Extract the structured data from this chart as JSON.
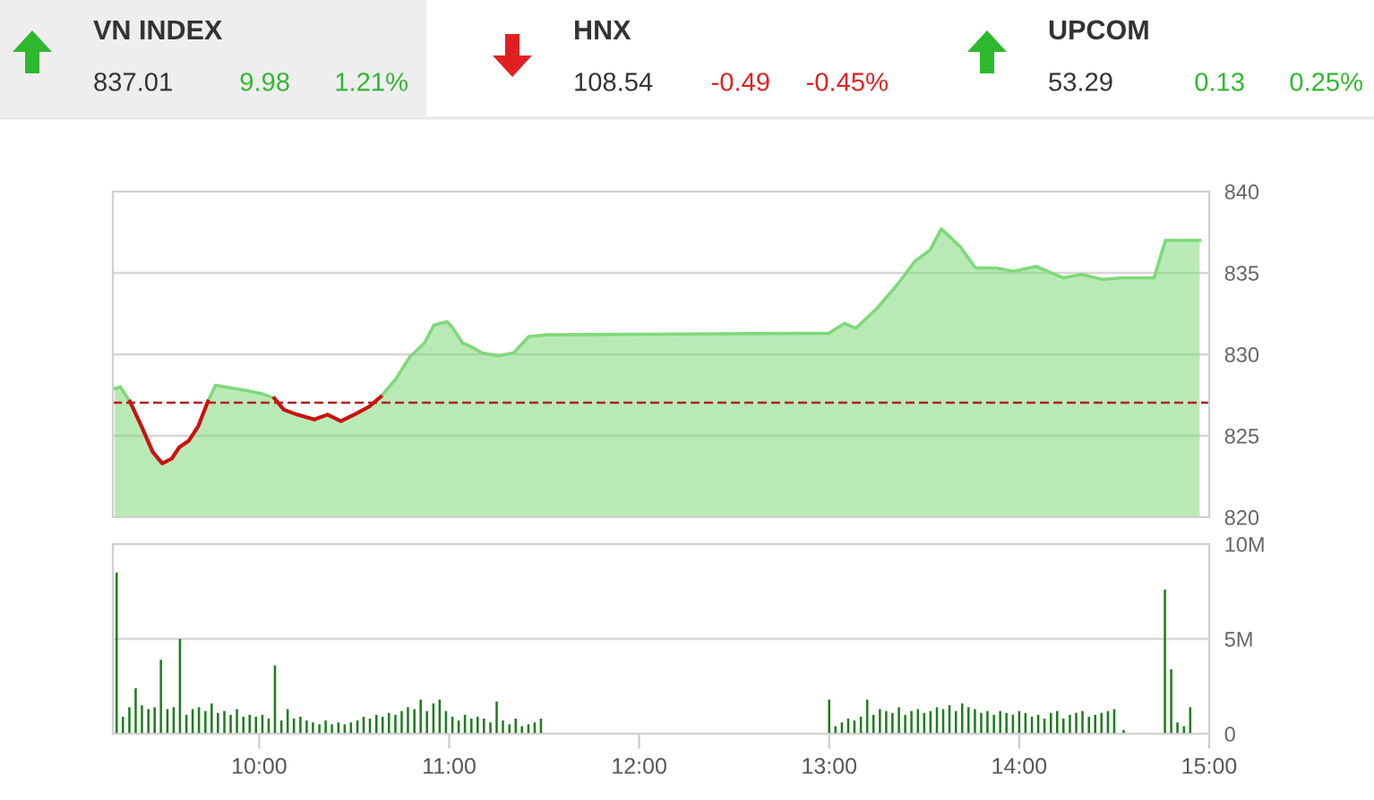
{
  "chart_data": [
    {
      "type": "other",
      "annotations": [
        "VN INDEX",
        "837.01",
        "9.98",
        "1.21%",
        "HNX",
        "108.54",
        "-0.49",
        "-0.45%",
        "UPCOM",
        "53.29",
        "0.13",
        "0.25%"
      ],
      "colors": [
        "#2eb82e",
        "#e02020",
        "#2eb82e"
      ]
    },
    {
      "type": "area",
      "x": [
        9.24,
        9.27,
        9.32,
        9.38,
        9.44,
        9.49,
        9.54,
        9.58,
        9.63,
        9.68,
        9.73,
        9.77,
        9.82,
        9.92,
        10.01,
        10.08,
        10.13,
        10.2,
        10.29,
        10.36,
        10.43,
        10.5,
        10.58,
        10.64,
        10.72,
        10.79,
        10.87,
        10.92,
        10.99,
        11.02,
        11.07,
        11.11,
        11.17,
        11.26,
        11.34,
        11.42,
        11.52,
        13.0,
        13.08,
        13.14,
        13.25,
        13.36,
        13.45,
        13.53,
        13.59,
        13.69,
        13.77,
        13.88,
        13.97,
        14.09,
        14.23,
        14.33,
        14.44,
        14.54,
        14.71,
        14.77,
        14.95
      ],
      "series": [
        {
          "type": "area",
          "color": "#7fd97a",
          "values": [
            827.9,
            828.0,
            827.1,
            825.6,
            824.0,
            823.3,
            823.6,
            824.3,
            824.7,
            825.6,
            827.1,
            828.1,
            828.0,
            827.8,
            827.6,
            827.3,
            826.6,
            826.3,
            826.0,
            826.3,
            825.9,
            826.3,
            826.8,
            827.4,
            828.5,
            829.8,
            830.7,
            831.8,
            832.0,
            831.6,
            830.7,
            830.5,
            830.1,
            829.9,
            830.1,
            831.1,
            831.2,
            831.3,
            831.9,
            831.6,
            832.8,
            834.3,
            835.7,
            836.4,
            837.7,
            836.6,
            835.3,
            835.3,
            835.1,
            835.4,
            834.7,
            834.9,
            834.6,
            834.7,
            834.7,
            837.0,
            837.0
          ]
        },
        {
          "type": "line",
          "color": "#cc1111",
          "values": [
            null,
            null,
            827.1,
            825.6,
            824.0,
            823.3,
            823.6,
            824.3,
            824.7,
            825.6,
            827.1,
            null,
            null,
            null,
            null,
            827.3,
            826.6,
            826.3,
            826.0,
            826.3,
            825.9,
            826.3,
            826.8,
            827.4,
            null,
            null,
            null,
            null,
            null,
            null,
            null,
            null,
            null,
            null,
            null,
            null,
            null,
            null,
            null,
            null,
            null,
            null,
            null,
            null,
            null,
            null,
            null,
            null,
            null,
            null,
            null,
            null,
            null,
            null,
            null,
            null,
            null
          ]
        }
      ],
      "xlim": [
        9.23,
        15.0
      ],
      "ylim": [
        820,
        840
      ],
      "yticks": [
        820,
        825,
        830,
        835,
        840
      ],
      "grid": "y",
      "tick_labels": "y",
      "ref_lines": [
        {
          "axis": "y",
          "value": 827.03,
          "color": "#b02020",
          "line_style": "dashed"
        }
      ]
    },
    {
      "type": "bar",
      "color": "#1e7d1e",
      "x": [
        9.25,
        9.283,
        9.317,
        9.35,
        9.383,
        9.417,
        9.45,
        9.483,
        9.517,
        9.55,
        9.583,
        9.617,
        9.65,
        9.683,
        9.717,
        9.75,
        9.783,
        9.817,
        9.85,
        9.883,
        9.917,
        9.95,
        9.983,
        10.017,
        10.05,
        10.083,
        10.117,
        10.15,
        10.183,
        10.217,
        10.25,
        10.283,
        10.317,
        10.35,
        10.383,
        10.417,
        10.45,
        10.483,
        10.517,
        10.55,
        10.583,
        10.617,
        10.65,
        10.683,
        10.717,
        10.75,
        10.783,
        10.817,
        10.85,
        10.883,
        10.917,
        10.95,
        10.983,
        11.017,
        11.05,
        11.083,
        11.117,
        11.15,
        11.183,
        11.217,
        11.25,
        11.283,
        11.317,
        11.35,
        11.383,
        11.417,
        11.45,
        11.483,
        13.0,
        13.033,
        13.067,
        13.1,
        13.133,
        13.167,
        13.2,
        13.233,
        13.267,
        13.3,
        13.333,
        13.367,
        13.4,
        13.433,
        13.467,
        13.5,
        13.533,
        13.567,
        13.6,
        13.633,
        13.667,
        13.7,
        13.733,
        13.767,
        13.8,
        13.833,
        13.867,
        13.9,
        13.933,
        13.967,
        14.0,
        14.033,
        14.067,
        14.1,
        14.133,
        14.167,
        14.2,
        14.233,
        14.267,
        14.3,
        14.333,
        14.367,
        14.4,
        14.433,
        14.467,
        14.5,
        14.55,
        14.767,
        14.8,
        14.833,
        14.867,
        14.9
      ],
      "values": [
        8.5,
        0.9,
        1.4,
        2.4,
        1.5,
        1.3,
        1.4,
        3.9,
        1.3,
        1.4,
        5.0,
        1.0,
        1.3,
        1.4,
        1.2,
        1.6,
        1.1,
        1.2,
        1.0,
        1.3,
        0.9,
        1.0,
        0.9,
        1.0,
        0.8,
        3.6,
        0.7,
        1.3,
        0.8,
        0.9,
        0.7,
        0.6,
        0.5,
        0.7,
        0.5,
        0.6,
        0.5,
        0.6,
        0.7,
        0.9,
        0.8,
        1.0,
        0.9,
        1.1,
        1.0,
        1.2,
        1.4,
        1.3,
        1.8,
        1.2,
        1.6,
        1.8,
        1.2,
        0.9,
        0.7,
        1.0,
        0.8,
        0.9,
        0.8,
        0.6,
        1.7,
        0.7,
        0.5,
        0.8,
        0.4,
        0.5,
        0.6,
        0.8,
        1.8,
        0.4,
        0.6,
        0.8,
        0.7,
        0.9,
        1.8,
        1.0,
        1.3,
        1.2,
        1.1,
        1.4,
        1.0,
        1.2,
        1.3,
        1.1,
        1.2,
        1.4,
        1.3,
        1.5,
        1.2,
        1.6,
        1.4,
        1.3,
        1.1,
        1.2,
        1.0,
        1.2,
        1.1,
        1.0,
        1.2,
        1.1,
        0.9,
        1.0,
        0.8,
        1.1,
        1.2,
        0.8,
        1.0,
        1.1,
        1.2,
        0.9,
        1.0,
        1.1,
        1.2,
        1.3,
        0.2,
        7.6,
        3.4,
        0.6,
        0.4,
        1.4
      ],
      "xlim": [
        9.23,
        15.0
      ],
      "xticks": [
        {
          "value": 10,
          "label": "10:00"
        },
        {
          "value": 11,
          "label": "11:00"
        },
        {
          "value": 12,
          "label": "12:00"
        },
        {
          "value": 13,
          "label": "13:00"
        },
        {
          "value": 14,
          "label": "14:00"
        },
        {
          "value": 15,
          "label": "15:00"
        }
      ],
      "ylim": [
        0,
        10
      ],
      "yticks": [
        0,
        {
          "value": 5,
          "label": "5M"
        },
        {
          "value": 10,
          "label": "10M"
        }
      ],
      "grid": "y"
    }
  ]
}
